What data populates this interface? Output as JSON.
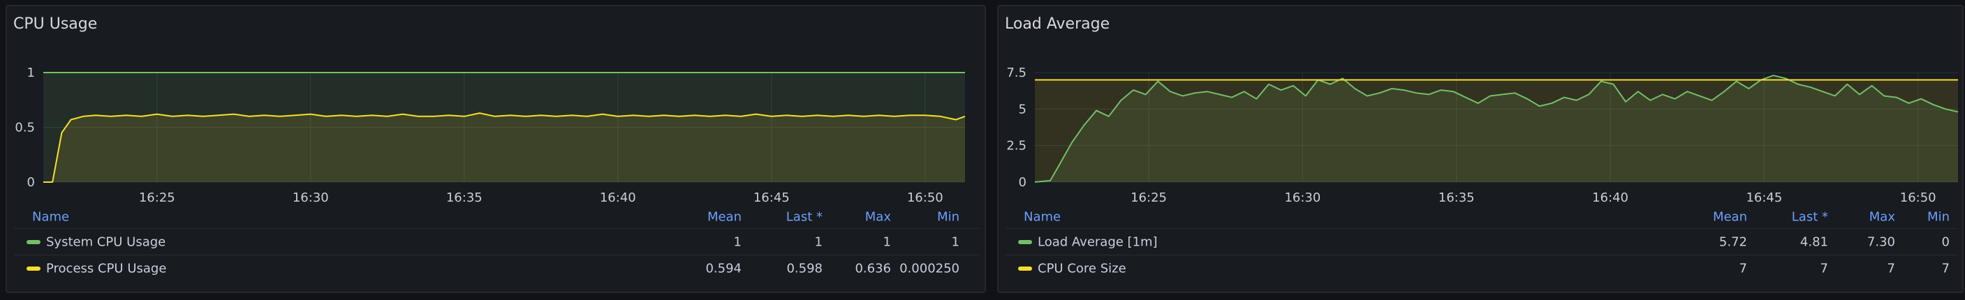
{
  "panels": [
    {
      "title": "CPU Usage",
      "legend": {
        "headers": {
          "name": "Name",
          "mean": "Mean",
          "last": "Last *",
          "max": "Max",
          "min": "Min"
        },
        "rows": [
          {
            "name": "System CPU Usage",
            "color": "#73bf69",
            "mean": "1",
            "last": "1",
            "max": "1",
            "min": "1"
          },
          {
            "name": "Process CPU Usage",
            "color": "#fade2a",
            "mean": "0.594",
            "last": "0.598",
            "max": "0.636",
            "min": "0.000250"
          }
        ]
      }
    },
    {
      "title": "Load Average",
      "legend": {
        "headers": {
          "name": "Name",
          "mean": "Mean",
          "last": "Last *",
          "max": "Max",
          "min": "Min"
        },
        "rows": [
          {
            "name": "Load Average [1m]",
            "color": "#73bf69",
            "mean": "5.72",
            "last": "4.81",
            "max": "7.30",
            "min": "0"
          },
          {
            "name": "CPU Core Size",
            "color": "#fade2a",
            "mean": "7",
            "last": "7",
            "max": "7",
            "min": "7"
          }
        ]
      }
    }
  ],
  "chart_data": [
    {
      "type": "line",
      "x_ticks": [
        "16:25",
        "16:30",
        "16:35",
        "16:40",
        "16:45",
        "16:50"
      ],
      "y_ticks": [
        "0",
        "0.5",
        "1"
      ],
      "ylim": [
        0,
        1
      ],
      "x_range_minutes": [
        21.3,
        51.3
      ],
      "x_tick_minutes": [
        25,
        30,
        35,
        40,
        45,
        50
      ],
      "grid": true,
      "series": [
        {
          "name": "System CPU Usage",
          "color": "#73bf69",
          "x": [
            21.3,
            51.3
          ],
          "values": [
            1,
            1
          ]
        },
        {
          "name": "Process CPU Usage",
          "color": "#fade2a",
          "x": [
            21.3,
            21.6,
            21.9,
            22.2,
            22.6,
            23.0,
            23.5,
            24.0,
            24.5,
            25.0,
            25.5,
            26.0,
            26.5,
            27.0,
            27.5,
            28.0,
            28.5,
            29.0,
            29.5,
            30.0,
            30.5,
            31.0,
            31.5,
            32.0,
            32.5,
            33.0,
            33.5,
            34.0,
            34.5,
            35.0,
            35.5,
            36.0,
            36.5,
            37.0,
            37.5,
            38.0,
            38.5,
            39.0,
            39.5,
            40.0,
            40.5,
            41.0,
            41.5,
            42.0,
            42.5,
            43.0,
            43.5,
            44.0,
            44.5,
            45.0,
            45.5,
            46.0,
            46.5,
            47.0,
            47.5,
            48.0,
            48.5,
            49.0,
            49.5,
            50.0,
            50.5,
            51.0,
            51.3
          ],
          "values": [
            0.0,
            0.0,
            0.45,
            0.57,
            0.6,
            0.61,
            0.6,
            0.61,
            0.6,
            0.62,
            0.6,
            0.61,
            0.6,
            0.61,
            0.62,
            0.6,
            0.61,
            0.6,
            0.61,
            0.62,
            0.6,
            0.61,
            0.6,
            0.61,
            0.6,
            0.62,
            0.6,
            0.6,
            0.61,
            0.6,
            0.63,
            0.6,
            0.61,
            0.6,
            0.61,
            0.6,
            0.61,
            0.6,
            0.62,
            0.6,
            0.61,
            0.6,
            0.61,
            0.6,
            0.61,
            0.6,
            0.61,
            0.6,
            0.62,
            0.6,
            0.61,
            0.6,
            0.61,
            0.6,
            0.61,
            0.6,
            0.61,
            0.6,
            0.61,
            0.61,
            0.6,
            0.57,
            0.6
          ]
        }
      ]
    },
    {
      "type": "line",
      "x_ticks": [
        "16:25",
        "16:30",
        "16:35",
        "16:40",
        "16:45",
        "16:50"
      ],
      "y_ticks": [
        "0",
        "2.5",
        "5",
        "7.5"
      ],
      "ylim": [
        0,
        7.5
      ],
      "x_range_minutes": [
        21.3,
        51.3
      ],
      "x_tick_minutes": [
        25,
        30,
        35,
        40,
        45,
        50
      ],
      "grid": true,
      "series": [
        {
          "name": "Load Average [1m]",
          "color": "#73bf69",
          "x": [
            21.3,
            21.8,
            22.1,
            22.5,
            22.9,
            23.3,
            23.7,
            24.1,
            24.5,
            24.9,
            25.3,
            25.7,
            26.1,
            26.5,
            26.9,
            27.3,
            27.7,
            28.1,
            28.5,
            28.9,
            29.3,
            29.7,
            30.1,
            30.5,
            30.9,
            31.3,
            31.7,
            32.1,
            32.5,
            32.9,
            33.3,
            33.7,
            34.1,
            34.5,
            34.9,
            35.3,
            35.7,
            36.1,
            36.5,
            36.9,
            37.3,
            37.7,
            38.1,
            38.5,
            38.9,
            39.3,
            39.7,
            40.1,
            40.5,
            40.9,
            41.3,
            41.7,
            42.1,
            42.5,
            42.9,
            43.3,
            43.7,
            44.1,
            44.5,
            44.9,
            45.3,
            45.7,
            46.1,
            46.5,
            46.9,
            47.3,
            47.7,
            48.1,
            48.5,
            48.9,
            49.3,
            49.7,
            50.1,
            50.5,
            50.9,
            51.3
          ],
          "values": [
            0.0,
            0.1,
            1.2,
            2.7,
            3.9,
            4.9,
            4.5,
            5.6,
            6.3,
            6.0,
            6.9,
            6.2,
            5.9,
            6.1,
            6.2,
            6.0,
            5.8,
            6.2,
            5.7,
            6.7,
            6.3,
            6.6,
            5.9,
            7.0,
            6.7,
            7.1,
            6.4,
            5.9,
            6.1,
            6.4,
            6.3,
            6.1,
            6.0,
            6.3,
            6.2,
            5.8,
            5.4,
            5.9,
            6.0,
            6.1,
            5.7,
            5.2,
            5.4,
            5.8,
            5.6,
            6.0,
            6.9,
            6.7,
            5.5,
            6.2,
            5.6,
            6.0,
            5.7,
            6.2,
            5.9,
            5.6,
            6.2,
            6.9,
            6.4,
            7.0,
            7.3,
            7.1,
            6.7,
            6.5,
            6.2,
            5.9,
            6.7,
            6.0,
            6.6,
            5.9,
            5.8,
            5.4,
            5.7,
            5.3,
            5.0,
            4.81
          ]
        },
        {
          "name": "CPU Core Size",
          "color": "#fade2a",
          "x": [
            21.3,
            51.3
          ],
          "values": [
            7,
            7
          ]
        }
      ]
    }
  ]
}
